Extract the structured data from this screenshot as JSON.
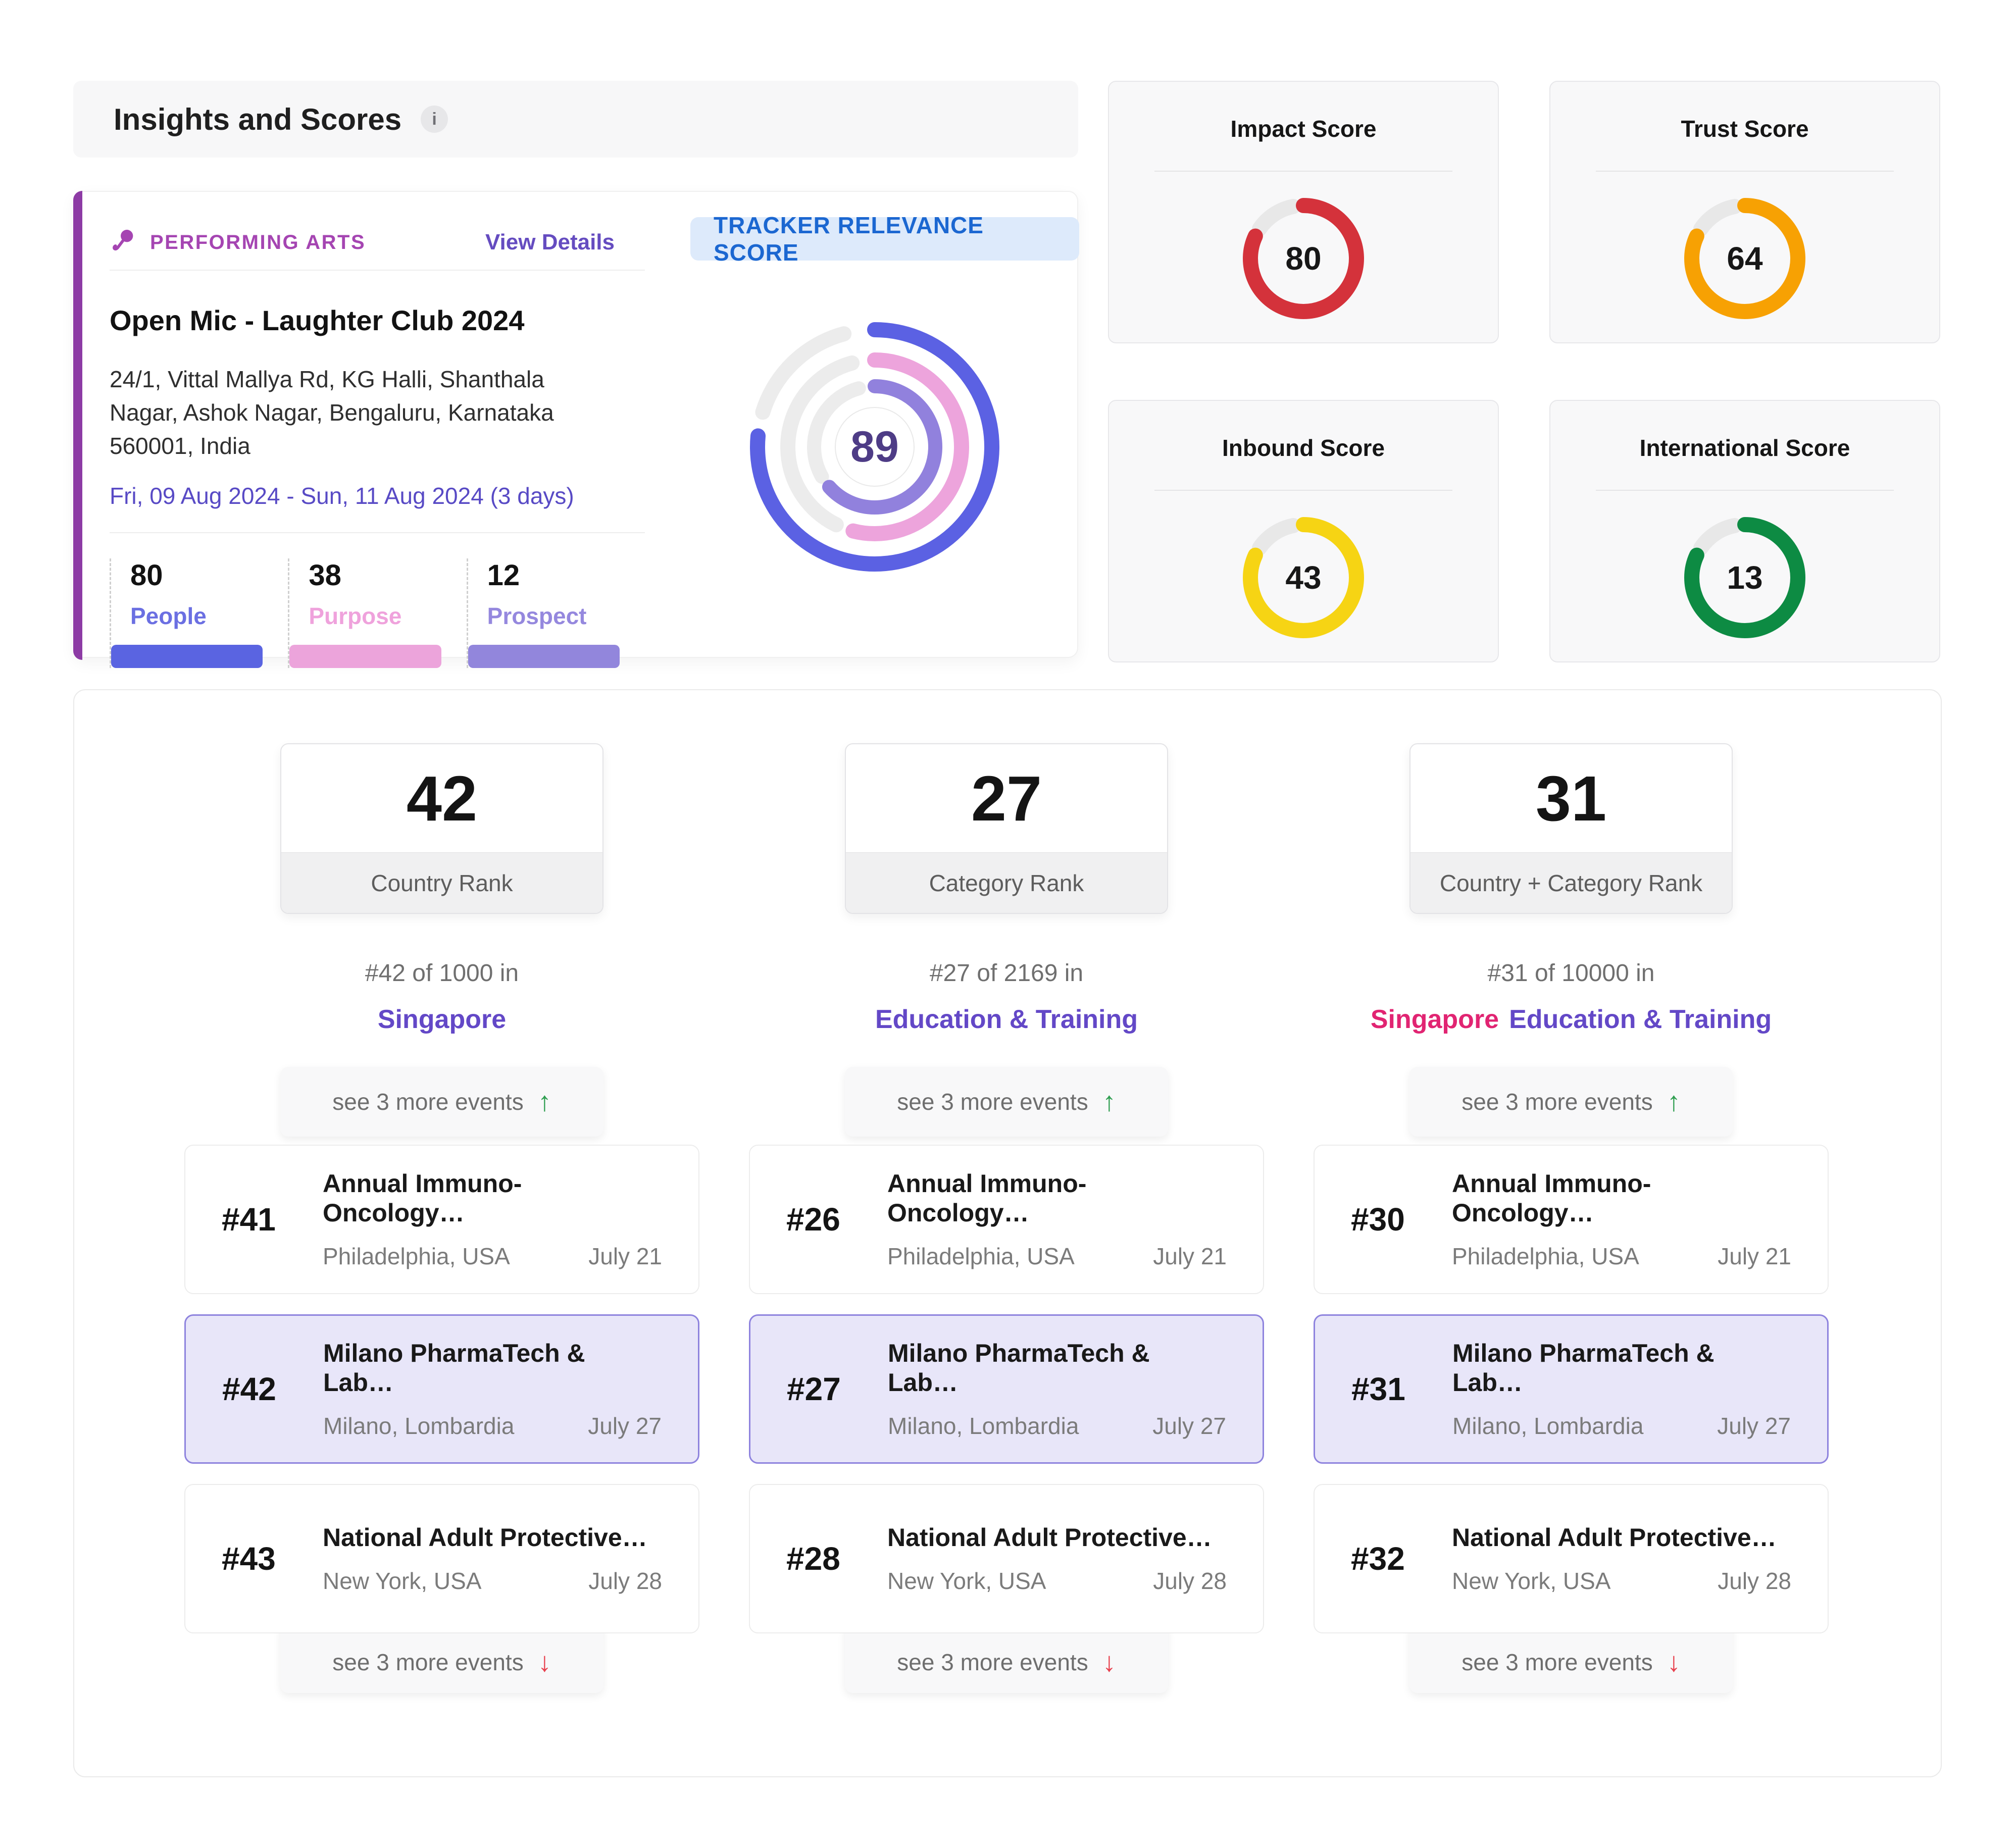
{
  "header": {
    "title": "Insights and Scores",
    "info_icon": "i"
  },
  "icons": {
    "up_arrow": "↑",
    "down_arrow": "↓"
  },
  "event_card": {
    "category": "PERFORMING ARTS",
    "view_details": "View Details",
    "title": "Open Mic - Laughter Club 2024",
    "address": "24/1, Vittal Mallya Rd, KG Halli, Shanthala Nagar, Ashok Nagar, Bengaluru, Karnataka 560001, India",
    "date_range": "Fri, 09 Aug 2024 - Sun, 11 Aug 2024 (3 days)",
    "stats": [
      {
        "value": "80",
        "label": "People",
        "color": "#5a64e1"
      },
      {
        "value": "38",
        "label": "Purpose",
        "color": "#eca4db"
      },
      {
        "value": "12",
        "label": "Prospect",
        "color": "#9286dc"
      }
    ]
  },
  "tracker": {
    "badge": "TRACKER RELEVANCE SCORE",
    "score": "89"
  },
  "score_cards": [
    {
      "title": "Impact Score",
      "value": "80",
      "color": "#d4323b"
    },
    {
      "title": "Trust Score",
      "value": "64",
      "color": "#f7a103"
    },
    {
      "title": "Inbound Score",
      "value": "43",
      "color": "#f6d414"
    },
    {
      "title": "International Score",
      "value": "13",
      "color": "#0d8b43"
    }
  ],
  "chart_data": [
    {
      "type": "donut-rings",
      "title": "Tracker Relevance Score",
      "center_value": 89,
      "rings": [
        {
          "name": "People",
          "value": 80,
          "color": "#5b61e3",
          "sweep": 0.765
        },
        {
          "name": "Purpose",
          "value": 38,
          "color": "#eda4dc",
          "sweep": 0.54
        },
        {
          "name": "Prospect",
          "value": 12,
          "color": "#9181dd",
          "sweep": 0.635
        }
      ],
      "track_color": "#ececec"
    },
    {
      "type": "gauge",
      "title": "Impact Score",
      "value": 80,
      "max": 100,
      "color": "#d4323b"
    },
    {
      "type": "gauge",
      "title": "Trust Score",
      "value": 64,
      "max": 100,
      "color": "#f7a103"
    },
    {
      "type": "gauge",
      "title": "Inbound Score",
      "value": 43,
      "max": 100,
      "color": "#f6d414"
    },
    {
      "type": "gauge",
      "title": "International Score",
      "value": 13,
      "max": 100,
      "color": "#0d8b43"
    }
  ],
  "rankings": {
    "columns": [
      {
        "rank": "42",
        "rank_label": "Country Rank",
        "of_text": "#42 of 1000 in",
        "scope_primary": "",
        "scope_secondary": "Singapore",
        "see_more_top": "see 3 more events",
        "see_more_bottom": "see 3 more events",
        "events": [
          {
            "rank": "#41",
            "title": "Annual Immuno-Oncology…",
            "location": "Philadelphia, USA",
            "date": "July 21",
            "highlighted": false
          },
          {
            "rank": "#42",
            "title": "Milano PharmaTech & Lab…",
            "location": "Milano, Lombardia",
            "date": "July 27",
            "highlighted": true
          },
          {
            "rank": "#43",
            "title": "National Adult Protective…",
            "location": "New York, USA",
            "date": "July 28",
            "highlighted": false
          }
        ]
      },
      {
        "rank": "27",
        "rank_label": "Category Rank",
        "of_text": "#27 of 2169 in",
        "scope_primary": "",
        "scope_secondary": "Education & Training",
        "see_more_top": "see 3 more events",
        "see_more_bottom": "see 3 more events",
        "events": [
          {
            "rank": "#26",
            "title": "Annual Immuno-Oncology…",
            "location": "Philadelphia, USA",
            "date": "July 21",
            "highlighted": false
          },
          {
            "rank": "#27",
            "title": "Milano PharmaTech & Lab…",
            "location": "Milano, Lombardia",
            "date": "July 27",
            "highlighted": true
          },
          {
            "rank": "#28",
            "title": "National Adult Protective…",
            "location": "New York, USA",
            "date": "July 28",
            "highlighted": false
          }
        ]
      },
      {
        "rank": "31",
        "rank_label": "Country + Category Rank",
        "of_text": "#31 of 10000 in",
        "scope_primary": "Singapore",
        "scope_secondary": "Education & Training",
        "see_more_top": "see 3 more events",
        "see_more_bottom": "see 3 more events",
        "events": [
          {
            "rank": "#30",
            "title": "Annual Immuno-Oncology…",
            "location": "Philadelphia, USA",
            "date": "July 21",
            "highlighted": false
          },
          {
            "rank": "#31",
            "title": "Milano PharmaTech & Lab…",
            "location": "Milano, Lombardia",
            "date": "July 27",
            "highlighted": true
          },
          {
            "rank": "#32",
            "title": "National Adult Protective…",
            "location": "New York, USA",
            "date": "July 28",
            "highlighted": false
          }
        ]
      }
    ]
  }
}
